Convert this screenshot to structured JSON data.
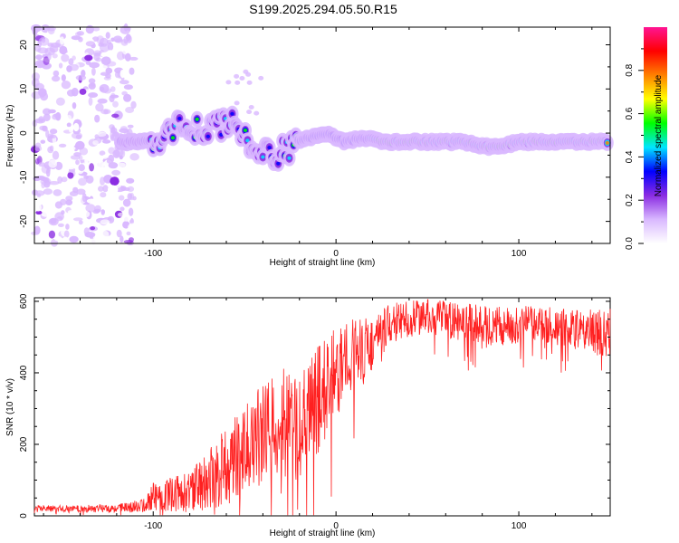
{
  "title": "S199.2025.294.05.50.R15",
  "chart_data": [
    {
      "type": "heatmap",
      "xlabel": "Height of straight line (km)",
      "ylabel": "Frequency (Hz)",
      "xlim": [
        -165,
        150
      ],
      "ylim": [
        -25,
        24
      ],
      "xticks": [
        -100,
        0,
        100
      ],
      "yticks": [
        20,
        10,
        0,
        -10,
        -20
      ],
      "colorbar": {
        "label": "Normalized spectral amplitude",
        "range": [
          0,
          1
        ],
        "ticks": [
          0.0,
          0.2,
          0.4,
          0.6,
          0.8
        ],
        "tick_labels": [
          "0.0",
          "0.2",
          "0.4",
          "0.6",
          "0.8"
        ],
        "colors": [
          "#ffffff",
          "#d9b8ff",
          "#8a2be2",
          "#0000ff",
          "#00e5ff",
          "#00ff00",
          "#ffff00",
          "#ff8000",
          "#ff0000",
          "#ff1493"
        ]
      },
      "ridge": {
        "x": [
          -115,
          -105,
          -95,
          -85,
          -75,
          -65,
          -55,
          -45,
          -35,
          -25,
          -15,
          -5,
          5,
          15,
          25,
          40,
          55,
          70,
          80,
          90,
          100,
          110,
          120,
          130,
          148
        ],
        "freq": [
          -2,
          -2,
          -1,
          2,
          1,
          2,
          2,
          -3,
          -6,
          -3,
          -1,
          0,
          -2,
          -1,
          -2,
          -2,
          -2,
          -2,
          -3,
          -3,
          -2,
          -2,
          -2,
          -2,
          -2
        ]
      }
    },
    {
      "type": "line",
      "xlabel": "Height of straight line (km)",
      "ylabel": "SNR (10 * v/v)",
      "xlim": [
        -165,
        150
      ],
      "ylim": [
        0,
        610
      ],
      "xticks": [
        -100,
        0,
        100
      ],
      "yticks": [
        0,
        200,
        400,
        600
      ],
      "color": "#ff2020",
      "envelope_x": [
        -165,
        -140,
        -120,
        -105,
        -100,
        -90,
        -80,
        -70,
        -60,
        -50,
        -40,
        -30,
        -20,
        -10,
        0,
        10,
        20,
        30,
        50,
        70,
        90,
        110,
        130,
        150
      ],
      "envelope_mean": [
        20,
        20,
        22,
        28,
        55,
        60,
        70,
        100,
        140,
        180,
        230,
        270,
        240,
        320,
        400,
        460,
        480,
        540,
        560,
        540,
        530,
        540,
        520,
        510
      ],
      "envelope_spread": [
        6,
        6,
        8,
        12,
        25,
        30,
        35,
        55,
        70,
        80,
        90,
        100,
        90,
        100,
        80,
        60,
        50,
        35,
        30,
        35,
        35,
        30,
        35,
        45
      ]
    }
  ]
}
